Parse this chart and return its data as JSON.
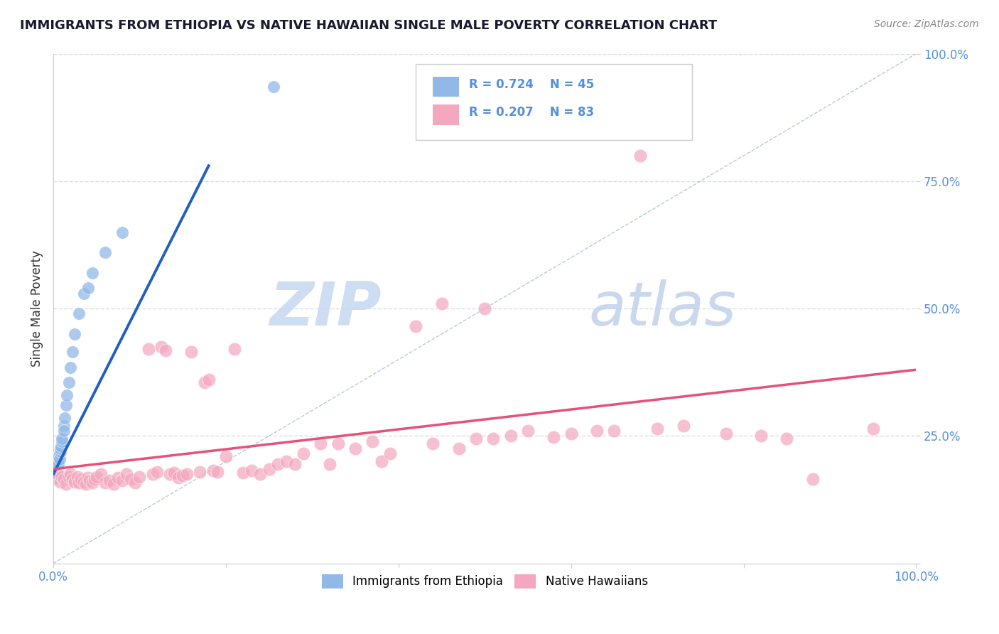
{
  "title": "IMMIGRANTS FROM ETHIOPIA VS NATIVE HAWAIIAN SINGLE MALE POVERTY CORRELATION CHART",
  "source": "Source: ZipAtlas.com",
  "ylabel": "Single Male Poverty",
  "legend_label_blue": "Immigrants from Ethiopia",
  "legend_label_pink": "Native Hawaiians",
  "R_blue": 0.724,
  "N_blue": 45,
  "R_pink": 0.207,
  "N_pink": 83,
  "color_blue": "#92b8e8",
  "color_pink": "#f4a8c0",
  "trend_blue": "#2060c0",
  "trend_pink": "#e8507a",
  "ref_line_color": "#aabbd0",
  "tick_color": "#5590d8",
  "grid_color": "#d8dde8",
  "background_color": "#ffffff",
  "watermark_color": "#c5d8f0",
  "title_color": "#1a1a2e",
  "source_color": "#888888",
  "ylabel_color": "#333333",
  "blue_x": [
    0.001,
    0.001,
    0.001,
    0.001,
    0.001,
    0.002,
    0.002,
    0.002,
    0.002,
    0.002,
    0.003,
    0.003,
    0.003,
    0.003,
    0.004,
    0.004,
    0.004,
    0.005,
    0.005,
    0.005,
    0.006,
    0.006,
    0.007,
    0.007,
    0.008,
    0.008,
    0.009,
    0.01,
    0.01,
    0.012,
    0.012,
    0.013,
    0.015,
    0.016,
    0.018,
    0.02,
    0.022,
    0.025,
    0.03,
    0.035,
    0.04,
    0.045,
    0.06,
    0.08,
    0.255
  ],
  "blue_y": [
    0.175,
    0.18,
    0.185,
    0.17,
    0.165,
    0.178,
    0.182,
    0.17,
    0.175,
    0.168,
    0.18,
    0.185,
    0.175,
    0.172,
    0.185,
    0.192,
    0.178,
    0.195,
    0.188,
    0.2,
    0.195,
    0.21,
    0.215,
    0.205,
    0.22,
    0.225,
    0.23,
    0.24,
    0.245,
    0.27,
    0.26,
    0.285,
    0.31,
    0.33,
    0.355,
    0.385,
    0.415,
    0.45,
    0.49,
    0.53,
    0.54,
    0.57,
    0.61,
    0.65,
    0.935
  ],
  "pink_x": [
    0.005,
    0.008,
    0.01,
    0.012,
    0.015,
    0.018,
    0.02,
    0.022,
    0.025,
    0.028,
    0.03,
    0.032,
    0.035,
    0.038,
    0.04,
    0.042,
    0.045,
    0.048,
    0.05,
    0.055,
    0.06,
    0.065,
    0.07,
    0.075,
    0.08,
    0.085,
    0.09,
    0.095,
    0.1,
    0.11,
    0.115,
    0.12,
    0.125,
    0.13,
    0.135,
    0.14,
    0.145,
    0.15,
    0.155,
    0.16,
    0.17,
    0.175,
    0.18,
    0.185,
    0.19,
    0.2,
    0.21,
    0.22,
    0.23,
    0.24,
    0.25,
    0.26,
    0.27,
    0.28,
    0.29,
    0.31,
    0.32,
    0.33,
    0.35,
    0.37,
    0.38,
    0.39,
    0.42,
    0.44,
    0.45,
    0.47,
    0.49,
    0.5,
    0.51,
    0.53,
    0.55,
    0.58,
    0.6,
    0.63,
    0.65,
    0.68,
    0.7,
    0.73,
    0.78,
    0.82,
    0.85,
    0.88,
    0.95
  ],
  "pink_y": [
    0.175,
    0.16,
    0.17,
    0.165,
    0.155,
    0.17,
    0.175,
    0.165,
    0.16,
    0.17,
    0.158,
    0.165,
    0.16,
    0.155,
    0.168,
    0.162,
    0.158,
    0.165,
    0.17,
    0.175,
    0.158,
    0.162,
    0.155,
    0.168,
    0.162,
    0.175,
    0.165,
    0.158,
    0.17,
    0.42,
    0.175,
    0.18,
    0.425,
    0.418,
    0.175,
    0.178,
    0.168,
    0.172,
    0.175,
    0.415,
    0.18,
    0.355,
    0.36,
    0.182,
    0.18,
    0.21,
    0.42,
    0.178,
    0.182,
    0.175,
    0.185,
    0.195,
    0.2,
    0.195,
    0.215,
    0.235,
    0.195,
    0.235,
    0.225,
    0.24,
    0.2,
    0.215,
    0.465,
    0.235,
    0.51,
    0.225,
    0.245,
    0.5,
    0.245,
    0.25,
    0.26,
    0.248,
    0.255,
    0.26,
    0.26,
    0.8,
    0.265,
    0.27,
    0.255,
    0.25,
    0.245,
    0.165,
    0.265
  ],
  "blue_trend_x0": 0.0,
  "blue_trend_y0": 0.175,
  "blue_trend_x1": 0.18,
  "blue_trend_y1": 0.78,
  "pink_trend_x0": 0.0,
  "pink_trend_y0": 0.185,
  "pink_trend_x1": 1.0,
  "pink_trend_y1": 0.38,
  "xlim": [
    0.0,
    1.0
  ],
  "ylim": [
    0.0,
    1.0
  ],
  "yticks": [
    0.0,
    0.25,
    0.5,
    0.75,
    1.0
  ],
  "ytick_labels": [
    "",
    "25.0%",
    "50.0%",
    "75.0%",
    "100.0%"
  ]
}
